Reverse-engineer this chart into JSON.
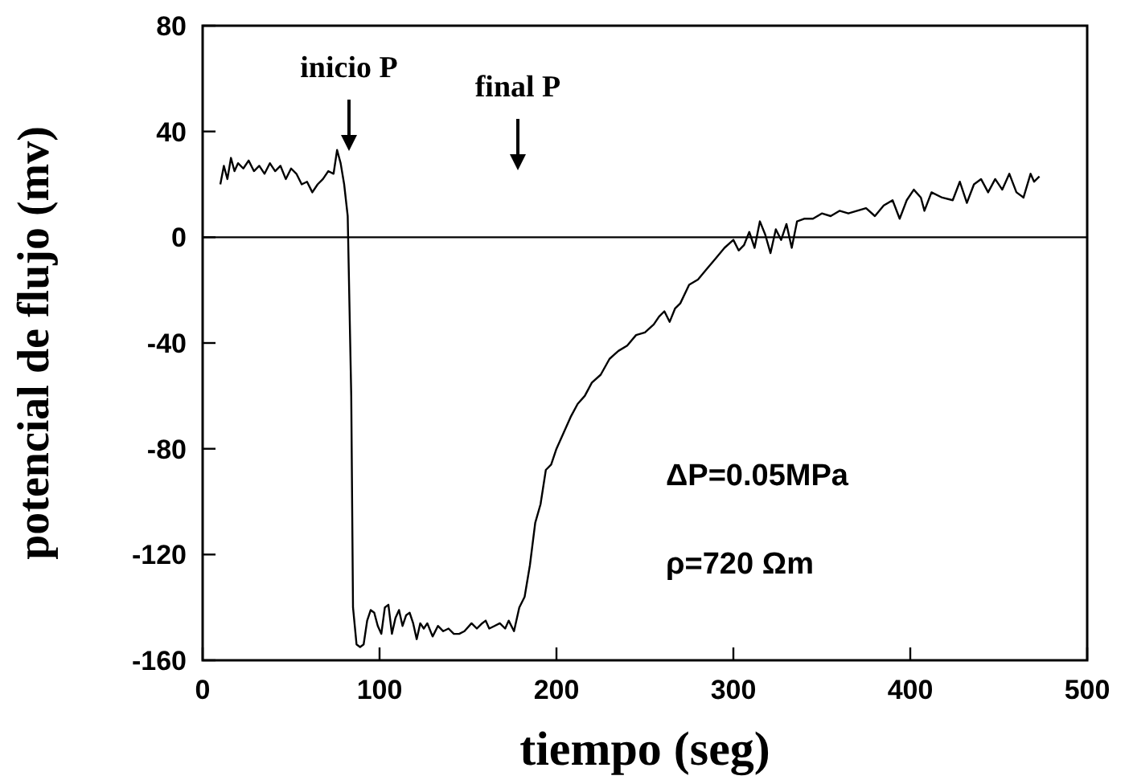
{
  "chart_data": {
    "type": "line",
    "xlabel": "tiempo (seg)",
    "ylabel": "potencial de flujo (mv)",
    "xlim": [
      0,
      500
    ],
    "xticks": [
      0,
      100,
      200,
      300,
      400,
      500
    ],
    "ylim": [
      -160,
      80
    ],
    "yticks": [
      -160,
      -120,
      -80,
      -40,
      0,
      40,
      80
    ],
    "grid": false,
    "marker": "none",
    "line_style": "solid",
    "series": [
      {
        "color": "#000000",
        "x": [
          10,
          12,
          14,
          16,
          18,
          20,
          23,
          26,
          29,
          32,
          35,
          38,
          41,
          44,
          47,
          50,
          53,
          56,
          59,
          62,
          65,
          68,
          71,
          74,
          76,
          78,
          80,
          82,
          84,
          85,
          87,
          89,
          91,
          93,
          95,
          97,
          99,
          101,
          103,
          105,
          107,
          109,
          111,
          113,
          115,
          117,
          119,
          121,
          123,
          125,
          127,
          130,
          133,
          136,
          139,
          142,
          145,
          148,
          152,
          155,
          158,
          160,
          162,
          165,
          168,
          171,
          173,
          176,
          179,
          182,
          185,
          188,
          191,
          194,
          197,
          200,
          204,
          208,
          212,
          216,
          220,
          225,
          230,
          235,
          240,
          245,
          250,
          255,
          258,
          261,
          264,
          267,
          270,
          275,
          280,
          285,
          290,
          295,
          300,
          303,
          306,
          309,
          312,
          315,
          318,
          321,
          324,
          327,
          330,
          333,
          336,
          340,
          345,
          350,
          355,
          360,
          365,
          370,
          375,
          380,
          385,
          390,
          394,
          398,
          402,
          406,
          408,
          412,
          418,
          424,
          428,
          432,
          436,
          440,
          444,
          448,
          452,
          456,
          460,
          464,
          468,
          470,
          473
        ],
        "values": [
          20,
          27,
          22,
          30,
          25,
          28,
          26,
          29,
          25,
          27,
          24,
          28,
          25,
          27,
          22,
          26,
          24,
          20,
          21,
          17,
          20,
          22,
          25,
          24,
          33,
          28,
          20,
          8,
          -60,
          -140,
          -154,
          -155,
          -154,
          -145,
          -141,
          -142,
          -147,
          -150,
          -140,
          -139,
          -150,
          -144,
          -141,
          -147,
          -143,
          -142,
          -146,
          -152,
          -146,
          -148,
          -146,
          -151,
          -147,
          -149,
          -148,
          -150,
          -150,
          -149,
          -146,
          -148,
          -146,
          -145,
          -148,
          -147,
          -146,
          -148,
          -145,
          -149,
          -140,
          -136,
          -124,
          -108,
          -101,
          -88,
          -86,
          -80,
          -74,
          -68,
          -63,
          -60,
          -55,
          -52,
          -46,
          -43,
          -41,
          -37,
          -36,
          -33,
          -30,
          -28,
          -32,
          -27,
          -25,
          -18,
          -16,
          -12,
          -8,
          -4,
          -1,
          -5,
          -3,
          2,
          -4,
          6,
          1,
          -6,
          3,
          -1,
          5,
          -4,
          6,
          7,
          7,
          9,
          8,
          10,
          9,
          10,
          11,
          8,
          12,
          14,
          7,
          14,
          18,
          15,
          10,
          17,
          15,
          14,
          21,
          13,
          20,
          22,
          17,
          22,
          18,
          24,
          17,
          15,
          24,
          21,
          23
        ]
      }
    ],
    "ref_lines": [
      {
        "axis": "y",
        "value": 0
      }
    ],
    "annotations": [
      "inicio P",
      "final P",
      "ΔP=0.05MPa",
      "ρ=720 Ωm"
    ]
  }
}
